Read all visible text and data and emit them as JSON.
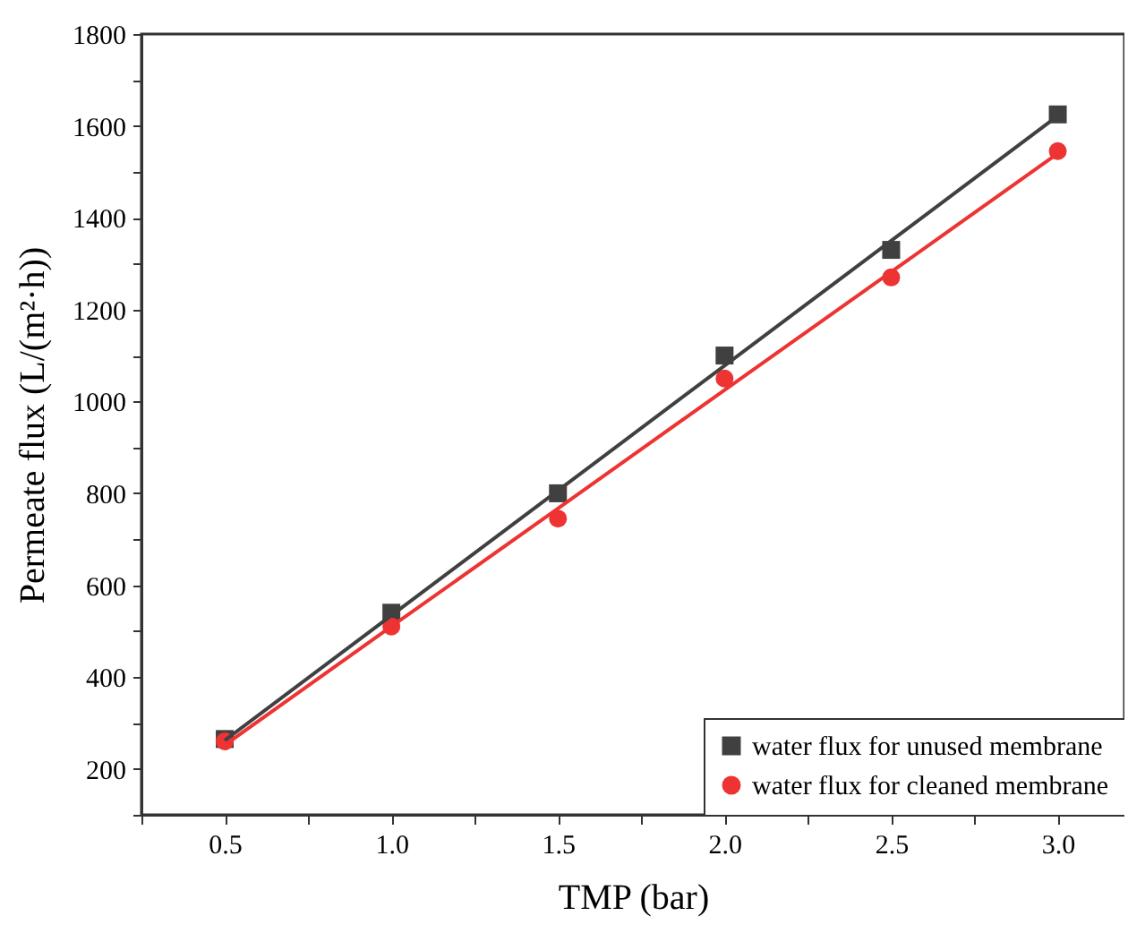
{
  "chart_data": {
    "type": "scatter",
    "xlabel": "TMP (bar)",
    "ylabel": "Permeate flux (L/(m²·h))",
    "xlim": [
      0.25,
      3.2
    ],
    "ylim": [
      100,
      1800
    ],
    "xticks": [
      {
        "value": 0.25,
        "label": null
      },
      0.5,
      {
        "value": 0.75,
        "label": null
      },
      {
        "value": 1,
        "label": "1.0"
      },
      {
        "value": 1.25,
        "label": null
      },
      1.5,
      {
        "value": 1.75,
        "label": null
      },
      {
        "value": 2,
        "label": "2.0"
      },
      {
        "value": 2.25,
        "label": null
      },
      2.5,
      {
        "value": 2.75,
        "label": null
      },
      {
        "value": 3,
        "label": "3.0"
      }
    ],
    "yticks": [
      {
        "value": 100,
        "label": null
      },
      200,
      {
        "value": 300,
        "label": null
      },
      400,
      {
        "value": 500,
        "label": null
      },
      600,
      {
        "value": 700,
        "label": null
      },
      800,
      {
        "value": 900,
        "label": null
      },
      1000,
      {
        "value": 1100,
        "label": null
      },
      1200,
      {
        "value": 1300,
        "label": null
      },
      1400,
      {
        "value": 1500,
        "label": null
      },
      1600,
      {
        "value": 1700,
        "label": null
      },
      1800
    ],
    "x": [
      0.5,
      1,
      1.5,
      2,
      2.5,
      3
    ],
    "series": [
      {
        "name": "water flux for unused membrane",
        "marker": "square",
        "color": "#404040",
        "values": [
          265,
          540,
          800,
          1100,
          1330,
          1625
        ]
      },
      {
        "name": "water flux for cleaned membrane",
        "marker": "circle",
        "color": "#ee3333",
        "values": [
          260,
          510,
          745,
          1050,
          1270,
          1545
        ]
      },
      {
        "type": "line",
        "color": "#404040",
        "values": [
          262,
          534,
          806,
          1078,
          1350,
          1622
        ]
      },
      {
        "type": "line",
        "color": "#ee3333",
        "values": [
          252,
          510,
          767,
          1025,
          1282,
          1540
        ]
      }
    ],
    "legend": "bottom right",
    "grid": false
  }
}
